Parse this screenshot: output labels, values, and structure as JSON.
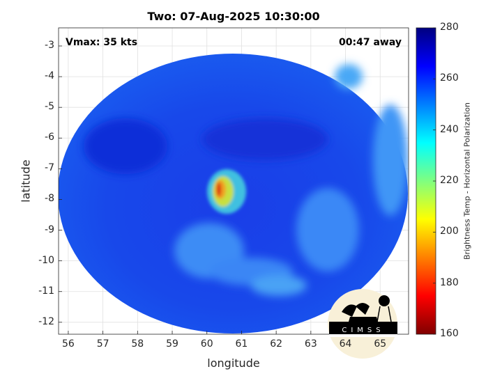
{
  "chart_data": {
    "type": "heatmap",
    "title": "Two: 07-Aug-2025 10:30:00",
    "xlabel": "longitude",
    "ylabel": "latitude",
    "xlim": [
      55.72,
      65.82
    ],
    "ylim": [
      -12.39,
      -2.41
    ],
    "xticks": [
      "56",
      "57",
      "58",
      "59",
      "60",
      "61",
      "62",
      "63",
      "64",
      "65"
    ],
    "yticks": [
      "-3",
      "-4",
      "-5",
      "-6",
      "-7",
      "-8",
      "-9",
      "-10",
      "-11",
      "-12"
    ],
    "grid": true,
    "colormap": "jet",
    "colorbar": {
      "label": "Brightness Temp - Horizontal Polarization",
      "range": [
        160,
        280
      ],
      "ticks": [
        "160",
        "180",
        "200",
        "220",
        "240",
        "260",
        "280"
      ]
    },
    "annotations": {
      "vmax": "Vmax: 35 kts",
      "time_offset": "00:47 away"
    },
    "features": {
      "coldest_core": {
        "lon": 60.4,
        "lat": -7.9,
        "approx_temp": 180
      },
      "background_temp": 262
    }
  },
  "logo": {
    "text": "CIMSS"
  }
}
